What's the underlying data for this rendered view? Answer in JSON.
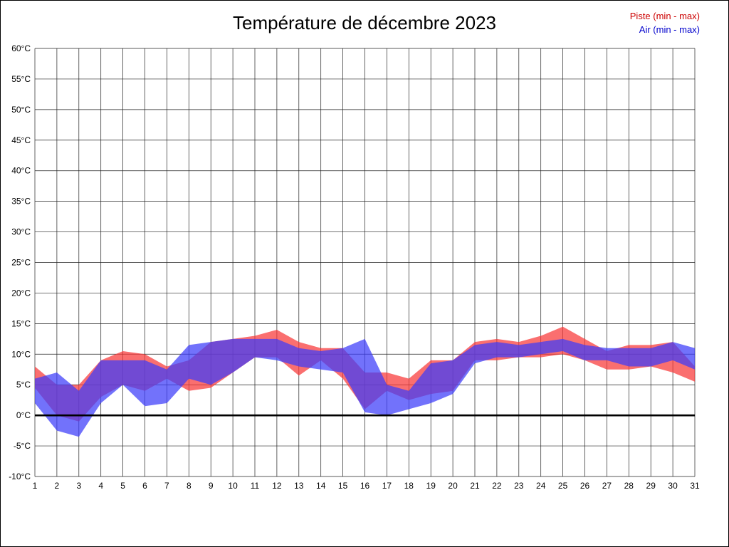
{
  "page": {
    "title": "Température de décembre 2023"
  },
  "legend": [
    {
      "label": "Piste (min - max)",
      "color": "#cc0000"
    },
    {
      "label": "Air (min - max)",
      "color": "#0000cc"
    }
  ],
  "chart_data": {
    "type": "area",
    "title": "Température de décembre 2023",
    "xlabel": "",
    "ylabel": "",
    "x": [
      1,
      2,
      3,
      4,
      5,
      6,
      7,
      8,
      9,
      10,
      11,
      12,
      13,
      14,
      15,
      16,
      17,
      18,
      19,
      20,
      21,
      22,
      23,
      24,
      25,
      26,
      27,
      28,
      29,
      30,
      31
    ],
    "ylim": [
      -10,
      60
    ],
    "ytick_step": 5,
    "ytick_suffix": "°C",
    "grid": true,
    "zero_line": true,
    "legend_position": "top-right",
    "series": [
      {
        "name": "Piste (min - max)",
        "band": true,
        "fill": "rgba(248,56,56,0.72)",
        "min": [
          4.5,
          0,
          -1,
          3,
          5,
          4,
          6,
          4,
          4.5,
          7,
          9.5,
          9.5,
          6.5,
          9,
          6,
          1,
          4,
          2.5,
          3.5,
          4,
          9,
          9,
          9.5,
          9.5,
          10,
          9,
          7.5,
          7.5,
          8,
          7,
          5.5
        ],
        "max": [
          8,
          5,
          5,
          9,
          10.5,
          10,
          8,
          9,
          12,
          12.5,
          13,
          14,
          12,
          11,
          11,
          7,
          7,
          6,
          9,
          9,
          12,
          12.5,
          12,
          13,
          14.5,
          12.5,
          10.5,
          11.5,
          11.5,
          12,
          8
        ]
      },
      {
        "name": "Air (min - max)",
        "band": true,
        "fill": "rgba(60,60,250,0.72)",
        "min": [
          2,
          -2.5,
          -3.5,
          2,
          5,
          1.5,
          2,
          6,
          5,
          7,
          9.5,
          9,
          8,
          7.5,
          7,
          0.5,
          0,
          1,
          2,
          3.5,
          8.5,
          9.5,
          9.5,
          10,
          10.5,
          9,
          9,
          8,
          8,
          9,
          7.5
        ],
        "max": [
          6,
          7,
          4,
          9,
          9,
          9,
          7.5,
          11.5,
          12,
          12.5,
          12.5,
          12.5,
          11,
          10.5,
          11,
          12.5,
          5,
          4,
          8.5,
          9,
          11.5,
          12,
          11.5,
          12,
          12.5,
          11.5,
          11,
          11,
          11,
          12,
          11
        ]
      }
    ]
  }
}
